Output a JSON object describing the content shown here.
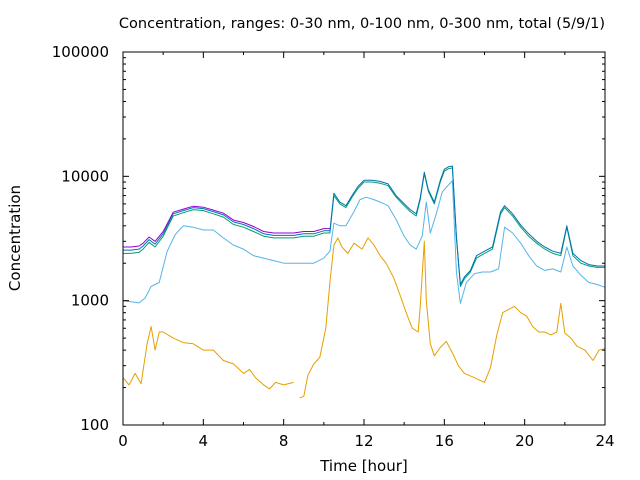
{
  "chart_data": {
    "type": "line",
    "title": "Concentration, ranges: 0-30 nm, 0-100 nm, 0-300 nm, total (5/9/1)",
    "xlabel": "Time [hour]",
    "ylabel": "Concentration",
    "xlim": [
      0,
      24
    ],
    "ylim": [
      100,
      100000
    ],
    "yscale": "log",
    "xticks": [
      0,
      4,
      8,
      12,
      16,
      20,
      24
    ],
    "yticks": [
      100,
      1000,
      10000,
      100000
    ],
    "xtick_labels": [
      "0",
      "4",
      "8",
      "12",
      "16",
      "20",
      "24"
    ],
    "ytick_labels": [
      "100",
      "1000",
      "10000",
      "100000"
    ],
    "grid": false,
    "legend": "none",
    "series": [
      {
        "color": "#e69f00",
        "x": [
          0,
          0.3,
          0.6,
          0.9,
          1.2,
          1.4,
          1.6,
          1.8,
          2.0,
          2.5,
          3.0,
          3.5,
          4.0,
          4.5,
          5.0,
          5.5,
          6.0,
          6.3,
          6.6,
          7.0,
          7.3,
          7.6,
          8.0,
          8.5,
          8.6,
          8.8,
          9.0,
          9.2,
          9.5,
          9.8,
          10.1,
          10.3,
          10.5,
          10.7,
          10.9,
          11.2,
          11.5,
          11.9,
          12.2,
          12.5,
          12.8,
          13.1,
          13.5,
          13.8,
          14.1,
          14.4,
          14.7,
          14.8,
          15.0,
          15.1,
          15.3,
          15.5,
          15.8,
          16.1,
          16.4,
          16.7,
          17.0,
          17.5,
          18.0,
          18.3,
          18.6,
          18.9,
          19.2,
          19.5,
          19.8,
          20.1,
          20.4,
          20.7,
          21.0,
          21.3,
          21.6,
          21.8,
          22.0,
          22.3,
          22.6,
          23.0,
          23.4,
          23.7,
          24.0
        ],
        "y": [
          240,
          210,
          260,
          215,
          450,
          620,
          400,
          560,
          560,
          500,
          460,
          450,
          400,
          400,
          330,
          310,
          260,
          280,
          240,
          210,
          195,
          220,
          210,
          220,
          null,
          165,
          170,
          250,
          310,
          350,
          600,
          1400,
          2800,
          3200,
          2700,
          2400,
          2900,
          2600,
          3200,
          2800,
          2300,
          2000,
          1500,
          1100,
          800,
          600,
          560,
          900,
          3000,
          1000,
          450,
          360,
          420,
          470,
          380,
          300,
          260,
          240,
          220,
          290,
          520,
          800,
          850,
          900,
          800,
          750,
          620,
          560,
          560,
          530,
          560,
          950,
          550,
          500,
          430,
          400,
          330,
          400,
          410
        ]
      },
      {
        "color": "#56b4e9",
        "x": [
          0,
          0.4,
          0.8,
          1.1,
          1.4,
          1.8,
          2.2,
          2.6,
          3.0,
          3.5,
          4.0,
          4.5,
          5.0,
          5.5,
          6.0,
          6.5,
          7.0,
          7.5,
          8.0,
          8.5,
          9.0,
          9.5,
          10.0,
          10.3,
          10.5,
          10.8,
          11.1,
          11.5,
          11.8,
          12.1,
          12.5,
          12.8,
          13.2,
          13.6,
          14.0,
          14.3,
          14.6,
          14.9,
          15.1,
          15.3,
          15.6,
          15.9,
          16.2,
          16.4,
          16.6,
          16.8,
          17.1,
          17.5,
          17.9,
          18.3,
          18.7,
          19.0,
          19.4,
          19.8,
          20.2,
          20.6,
          21.0,
          21.4,
          21.8,
          22.1,
          22.4,
          22.8,
          23.2,
          23.6,
          24.0
        ],
        "y": [
          1000,
          980,
          960,
          1050,
          1300,
          1400,
          2500,
          3400,
          4000,
          3900,
          3700,
          3700,
          3200,
          2800,
          2600,
          2300,
          2200,
          2100,
          2000,
          2000,
          2000,
          2000,
          2200,
          2500,
          4200,
          4000,
          4000,
          5200,
          6500,
          6800,
          6500,
          6200,
          5800,
          4500,
          3300,
          2800,
          2600,
          3300,
          6200,
          3500,
          5000,
          7500,
          8500,
          9200,
          1700,
          950,
          1400,
          1650,
          1700,
          1700,
          1800,
          3900,
          3500,
          2900,
          2300,
          1900,
          1750,
          1800,
          1700,
          2700,
          1900,
          1600,
          1400,
          1350,
          1280
        ]
      },
      {
        "color": "#009e73",
        "x": [
          0,
          0.4,
          0.8,
          1.0,
          1.3,
          1.6,
          2.0,
          2.5,
          3.0,
          3.5,
          4.0,
          4.5,
          5.0,
          5.5,
          6.0,
          6.5,
          7.0,
          7.5,
          8.0,
          8.5,
          9.0,
          9.5,
          10.0,
          10.3,
          10.5,
          10.8,
          11.1,
          11.4,
          11.7,
          12.0,
          12.4,
          12.8,
          13.2,
          13.6,
          14.0,
          14.3,
          14.6,
          14.8,
          15.0,
          15.2,
          15.5,
          15.8,
          16.0,
          16.2,
          16.4,
          16.6,
          16.8,
          17.0,
          17.3,
          17.6,
          18.0,
          18.4,
          18.8,
          19.0,
          19.4,
          19.8,
          20.2,
          20.6,
          21.0,
          21.4,
          21.8,
          22.1,
          22.4,
          22.8,
          23.2,
          23.6,
          24.0
        ],
        "y": [
          2400,
          2400,
          2450,
          2600,
          2950,
          2700,
          3300,
          4800,
          5100,
          5400,
          5300,
          5000,
          4700,
          4100,
          3900,
          3600,
          3300,
          3200,
          3200,
          3200,
          3300,
          3300,
          3500,
          3500,
          7000,
          6000,
          5600,
          6800,
          8000,
          9000,
          9000,
          8800,
          8400,
          6800,
          5800,
          5200,
          4800,
          6500,
          10500,
          7600,
          6000,
          9000,
          11000,
          11500,
          11700,
          3200,
          1300,
          1500,
          1700,
          2200,
          2400,
          2600,
          5000,
          5600,
          4800,
          3900,
          3300,
          2900,
          2600,
          2400,
          2300,
          3900,
          2300,
          2000,
          1900,
          1850,
          1850
        ]
      },
      {
        "color": "#0072b2",
        "x": [
          0,
          0.4,
          0.8,
          1.0,
          1.3,
          1.6,
          2.0,
          2.5,
          3.0,
          3.5,
          4.0,
          4.5,
          5.0,
          5.5,
          6.0,
          6.5,
          7.0,
          7.5,
          8.0,
          8.5,
          9.0,
          9.5,
          10.0,
          10.3,
          10.5,
          10.8,
          11.1,
          11.4,
          11.7,
          12.0,
          12.4,
          12.8,
          13.2,
          13.6,
          14.0,
          14.3,
          14.6,
          14.8,
          15.0,
          15.2,
          15.5,
          15.8,
          16.0,
          16.2,
          16.4,
          16.6,
          16.8,
          17.0,
          17.3,
          17.6,
          18.0,
          18.4,
          18.8,
          19.0,
          19.4,
          19.8,
          20.2,
          20.6,
          21.0,
          21.4,
          21.8,
          22.1,
          22.4,
          22.8,
          23.2,
          23.6,
          24.0
        ],
        "y": [
          2550,
          2550,
          2600,
          2750,
          3100,
          2850,
          3450,
          5000,
          5300,
          5600,
          5500,
          5200,
          4900,
          4300,
          4100,
          3800,
          3450,
          3350,
          3350,
          3350,
          3450,
          3450,
          3650,
          3650,
          7300,
          6200,
          5800,
          7000,
          8300,
          9300,
          9300,
          9100,
          8700,
          7000,
          6000,
          5400,
          5000,
          6700,
          10800,
          7800,
          6200,
          9300,
          11400,
          11900,
          12100,
          3300,
          1350,
          1550,
          1750,
          2300,
          2500,
          2700,
          5200,
          5800,
          5000,
          4050,
          3450,
          3000,
          2700,
          2500,
          2400,
          4000,
          2400,
          2100,
          1950,
          1900,
          1900
        ]
      },
      {
        "color": "#9400d3",
        "x": [
          0,
          0.4,
          0.8,
          1.0,
          1.3,
          1.6,
          2.0,
          2.5,
          3.0,
          3.5,
          4.0,
          4.5,
          5.0,
          5.5,
          6.0,
          6.5,
          7.0,
          7.5,
          8.0,
          8.5,
          9.0,
          9.5,
          10.0,
          10.3
        ],
        "y": [
          2700,
          2700,
          2750,
          2900,
          3250,
          3000,
          3600,
          5150,
          5450,
          5750,
          5650,
          5350,
          5050,
          4450,
          4250,
          3950,
          3600,
          3500,
          3500,
          3500,
          3600,
          3600,
          3800,
          3800
        ]
      }
    ]
  }
}
